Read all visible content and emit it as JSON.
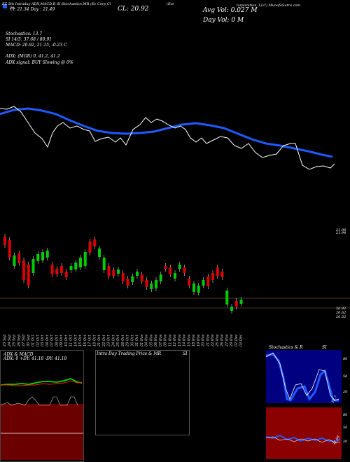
{
  "header": {
    "line1": "EZ 5th  Intraday ADX,MACD,R       SI,Stochastics,MR       (Ez Corp Cl",
    "line1b": "(Ezt",
    "line1c": "ZA",
    "line2": "Cl: 21.34   Day : 21.49",
    "close_label": "CL: 20.92",
    "avg_vol": "Avg Vol: 0.027 M",
    "day_vol": "Day Vol: 0   M",
    "company_right": "lorporation, LLC) MunafaSutra.com",
    "stoch": "Stochastics: 13.7",
    "si": "SI 14/5: 37.68 / 80.91",
    "macd": "MACD: 20.92, 21.15, -0.23 C",
    "adx": "ADX:                           (MGR) 0, 41.2, 41.2",
    "adx_signal": "ADX  signal:                                BUY Slowing @ 0%"
  },
  "price_labels": {
    "top": "21.98",
    "top2": "21.94",
    "mid": "20.92",
    "low1": "20.62",
    "low2": "20.52"
  },
  "x_dates": [
    "23 Sep",
    "24 Sep",
    "25 Sep",
    "26 Sep",
    "27 Sep",
    "30 Sep",
    "01 Oct",
    "02 Oct",
    "03 Oct",
    "04 Oct",
    "07 Oct",
    "08 Oct",
    "09 Oct",
    "10 Oct",
    "11 Oct",
    "14 Oct",
    "15 Oct",
    "16 Oct",
    "17 Oct",
    "18 Oct",
    "21 Oct",
    "22 Oct",
    "23 Oct",
    "24 Oct",
    "25 Oct",
    "28 Oct",
    "29 Oct",
    "30 Oct",
    "31 Oct",
    "01 Nov",
    "04 Nov",
    "05 Nov",
    "06 Nov",
    "07 Nov",
    "08 Nov",
    "11 Nov",
    "12 Nov",
    "13 Nov",
    "14 Nov",
    "15 Nov",
    "18 Nov",
    "19 Nov",
    "20 Nov",
    "21 Nov",
    "22 Nov",
    "25 Nov",
    "26 Nov",
    "27 Nov",
    "29 Nov",
    "02 Dec",
    "03 Dec"
  ],
  "panels": {
    "adx_title": "ADX  & MACD",
    "adx_values": "ADX: 0  +DY: 41.18  -DY: 41.18",
    "intraday_title": "Intra  Day Trading Price  & MR",
    "intraday_si": "SI",
    "stoch_title": "Stochastics & R",
    "stoch_si": "SI",
    "stoch_value": "13.7",
    "si_value": "37.68",
    "stoch_levels": [
      "80",
      "50",
      "20"
    ],
    "si_levels": [
      "80",
      "50",
      "20"
    ]
  },
  "colors": {
    "bg": "#000000",
    "ma_blue": "#1e5aff",
    "up_green": "#00cc00",
    "down_red": "#dd0000",
    "si_panel": "#8b0000",
    "stoch_panel": "#000080",
    "adx_green": "#00dd00",
    "adx_red": "#ff2200",
    "macd_panel": "#6b0000"
  },
  "chart_data": {
    "type": "candlestick",
    "close_last": 20.92,
    "candles_direction": [
      "down",
      "down",
      "up",
      "down",
      "down",
      "down",
      "up",
      "up",
      "up",
      "up",
      "down",
      "down",
      "down",
      "down",
      "up",
      "up",
      "up",
      "up",
      "down",
      "down",
      "up",
      "up",
      "down",
      "down",
      "up",
      "down",
      "down",
      "up",
      "up",
      "down",
      "down",
      "up",
      "up",
      "up",
      "down",
      "down",
      "up",
      "up",
      "down",
      "down",
      "up",
      "up",
      "up",
      "down",
      "down",
      "down",
      "down",
      "up",
      "up",
      "down",
      "up"
    ]
  }
}
